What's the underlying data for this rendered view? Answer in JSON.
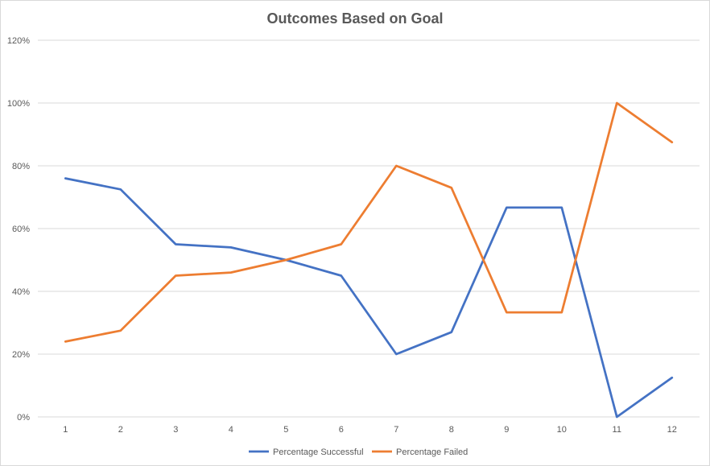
{
  "chart_data": {
    "type": "line",
    "title": "Outcomes Based on Goal",
    "xlabel": "",
    "ylabel": "",
    "categories": [
      "1",
      "2",
      "3",
      "4",
      "5",
      "6",
      "7",
      "8",
      "9",
      "10",
      "11",
      "12"
    ],
    "y_ticks": [
      "0%",
      "20%",
      "40%",
      "60%",
      "80%",
      "100%",
      "120%"
    ],
    "ylim": [
      0,
      1.2
    ],
    "grid": true,
    "legend_position": "bottom",
    "series": [
      {
        "name": "Percentage Successful",
        "color": "#4472c4",
        "values": [
          0.76,
          0.725,
          0.55,
          0.54,
          0.5,
          0.45,
          0.2,
          0.27,
          0.667,
          0.667,
          0.0,
          0.125
        ]
      },
      {
        "name": "Percentage Failed",
        "color": "#ed7d31",
        "values": [
          0.24,
          0.275,
          0.45,
          0.46,
          0.5,
          0.55,
          0.8,
          0.73,
          0.333,
          0.333,
          1.0,
          0.875
        ]
      }
    ]
  }
}
